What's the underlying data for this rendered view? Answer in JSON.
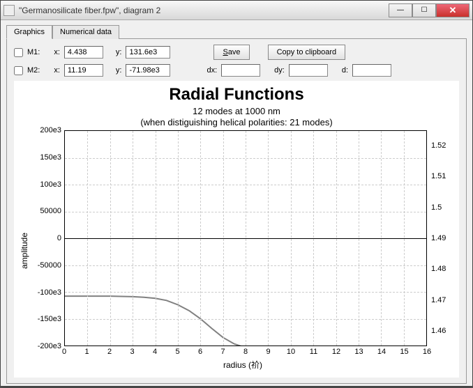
{
  "window": {
    "title": "\"Germanosilicate fiber.fpw\", diagram 2"
  },
  "tabs": {
    "graphics": "Graphics",
    "numerical": "Numerical data"
  },
  "controls": {
    "m1_label": "M1:",
    "m2_label": "M2:",
    "x_label": "x:",
    "y_label": "y:",
    "m1_x": "4.438",
    "m1_y": "131.6e3",
    "m2_x": "11.19",
    "m2_y": "-71.98e3",
    "dx_label": "dx:",
    "dy_label": "dy:",
    "d_label": "d:",
    "dx_val": "",
    "dy_val": "",
    "d_val": "",
    "save_label": "Save",
    "copy_label": "Copy to clipboard"
  },
  "chart": {
    "title": "Radial Functions",
    "subtitle1": "12 modes at 1000 nm",
    "subtitle2": "(when distiguishing helical polarities: 21 modes)",
    "xlabel": "radius (祄)",
    "ylabel": "amplitude",
    "xlim": [
      0,
      16
    ],
    "ylim_left": [
      -200000,
      200000
    ],
    "ylim_right": [
      1.455,
      1.525
    ],
    "xticks": [
      0,
      1,
      2,
      3,
      4,
      5,
      6,
      7,
      8,
      9,
      10,
      11,
      12,
      13,
      14,
      15,
      16
    ],
    "yticks_left": [
      {
        "v": 200000,
        "label": "200e3"
      },
      {
        "v": 150000,
        "label": "150e3"
      },
      {
        "v": 100000,
        "label": "100e3"
      },
      {
        "v": 50000,
        "label": "50000"
      },
      {
        "v": 0,
        "label": "0"
      },
      {
        "v": -50000,
        "label": "-50000"
      },
      {
        "v": -100000,
        "label": "-100e3"
      },
      {
        "v": -150000,
        "label": "-150e3"
      },
      {
        "v": -200000,
        "label": "-200e3"
      }
    ],
    "yticks_right": [
      {
        "v": 1.52,
        "label": "1.52"
      },
      {
        "v": 1.51,
        "label": "1.51"
      },
      {
        "v": 1.5,
        "label": "1.5"
      },
      {
        "v": 1.49,
        "label": "1.49"
      },
      {
        "v": 1.48,
        "label": "1.48"
      },
      {
        "v": 1.47,
        "label": "1.47"
      },
      {
        "v": 1.46,
        "label": "1.46"
      }
    ],
    "curve_color": "#808080",
    "curve_width": 2,
    "grid_color": "#cccccc",
    "background": "#ffffff",
    "curve_points": [
      {
        "x": 0,
        "y": -108000
      },
      {
        "x": 1,
        "y": -108000
      },
      {
        "x": 2,
        "y": -108000
      },
      {
        "x": 3,
        "y": -109000
      },
      {
        "x": 3.5,
        "y": -110000
      },
      {
        "x": 4,
        "y": -112000
      },
      {
        "x": 4.5,
        "y": -116000
      },
      {
        "x": 5,
        "y": -124000
      },
      {
        "x": 5.5,
        "y": -135000
      },
      {
        "x": 6,
        "y": -150000
      },
      {
        "x": 6.5,
        "y": -168000
      },
      {
        "x": 7,
        "y": -185000
      },
      {
        "x": 7.5,
        "y": -197000
      },
      {
        "x": 8,
        "y": -204000
      }
    ]
  }
}
